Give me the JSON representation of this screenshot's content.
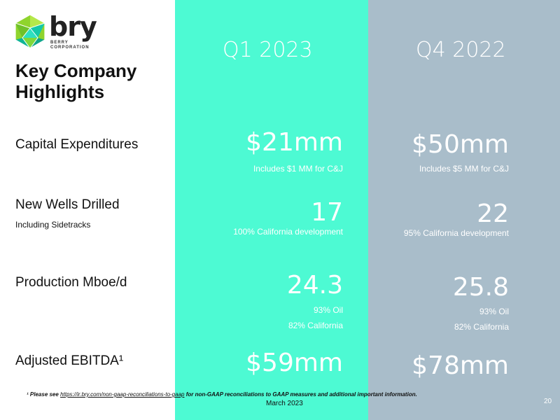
{
  "brand": {
    "name": "bry",
    "sub_line1": "BERRY",
    "sub_line2": "CORPORATION",
    "color_green": "#8fd42d",
    "color_teal": "#14c9a8"
  },
  "title": "Key Company Highlights",
  "columns": {
    "q1": {
      "heading": "Q1 2023",
      "color": "#4dfad3"
    },
    "q4": {
      "heading": "Q4 2022",
      "color": "#a9bdca"
    }
  },
  "rows": [
    {
      "label": "Capital Expenditures",
      "sublabel": "",
      "q1_value": "$21mm",
      "q1_notes": [
        "Includes $1 MM for C&J"
      ],
      "q4_value": "$50mm",
      "q4_notes": [
        "Includes $5 MM for C&J"
      ]
    },
    {
      "label": "New Wells Drilled",
      "sublabel": "Including Sidetracks",
      "q1_value": "17",
      "q1_notes": [
        "100% California development"
      ],
      "q4_value": "22",
      "q4_notes": [
        "95% California development"
      ]
    },
    {
      "label": "Production Mboe/d",
      "sublabel": "",
      "q1_value": "24.3",
      "q1_notes": [
        "93% Oil",
        "82% California"
      ],
      "q4_value": "25.8",
      "q4_notes": [
        "93% Oil",
        "82% California"
      ]
    },
    {
      "label": "Adjusted EBITDA¹",
      "sublabel": "",
      "q1_value": "$59mm",
      "q1_notes": [],
      "q4_value": "$78mm",
      "q4_notes": []
    }
  ],
  "footnote": {
    "marker": "¹",
    "prefix": "Please see ",
    "link": "https://ir.bry.com/non-gaap-reconciliations-to-gaap",
    "suffix": " for non-GAAP reconciliations to GAAP measures and additional important information."
  },
  "date": "March 2023",
  "page_number": "20"
}
